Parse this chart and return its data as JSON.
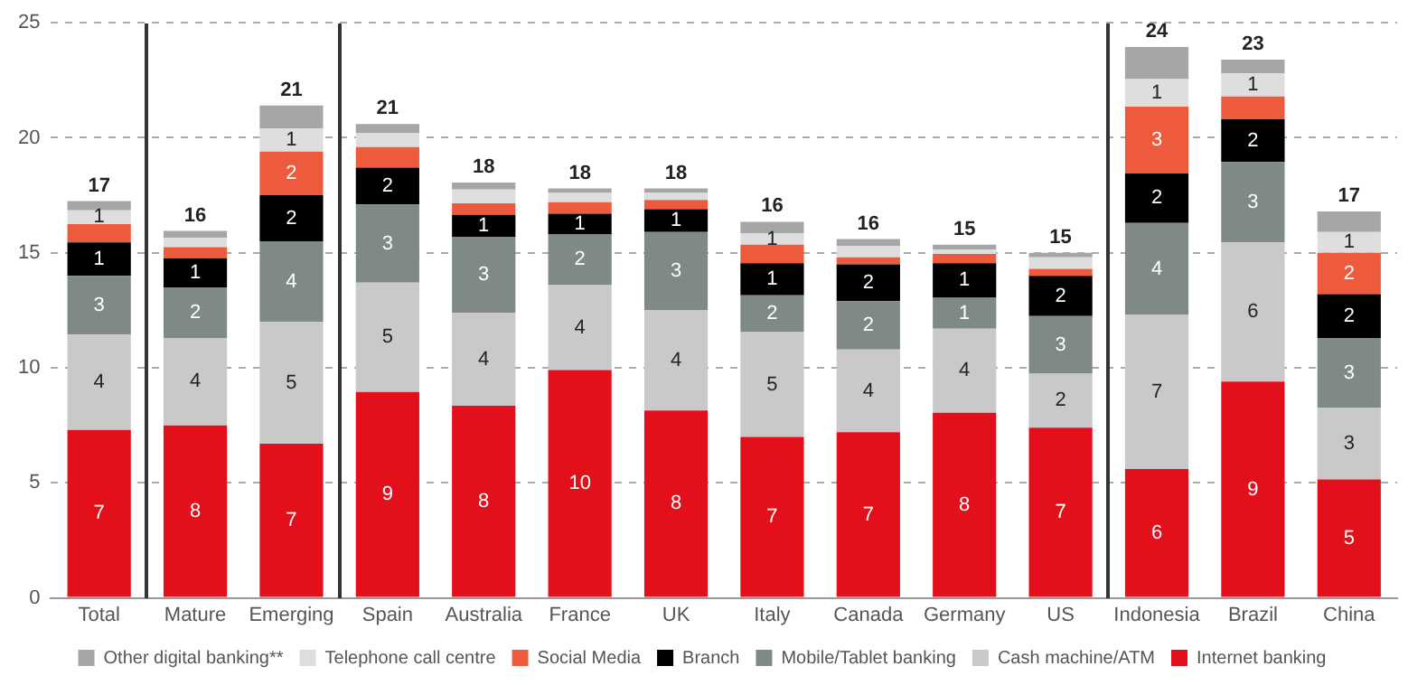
{
  "chart_data": {
    "type": "bar",
    "stacked": true,
    "categories": [
      "Total",
      "Mature",
      "Emerging",
      "Spain",
      "Australia",
      "France",
      "UK",
      "Italy",
      "Canada",
      "Germany",
      "US",
      "Indonesia",
      "Brazil",
      "China"
    ],
    "ylim": [
      0,
      25
    ],
    "yticks": [
      0,
      5,
      10,
      15,
      20,
      25
    ],
    "grid": "y",
    "legend": "bottom",
    "totals": [
      "17",
      "16",
      "21",
      "21",
      "18",
      "18",
      "18",
      "16",
      "16",
      "15",
      "15",
      "24",
      "23",
      "17"
    ],
    "series": [
      {
        "name": "Internet banking",
        "color": "#e3101b",
        "values": [
          7.3,
          7.5,
          6.7,
          8.95,
          8.35,
          9.9,
          8.15,
          7.0,
          7.2,
          8.05,
          7.4,
          5.6,
          9.4,
          5.15
        ],
        "value_labels": [
          "7",
          "8",
          "7",
          "9",
          "8",
          "10",
          "8",
          "7",
          "7",
          "8",
          "7",
          "6",
          "9",
          "5"
        ]
      },
      {
        "name": "Cash machine/ATM",
        "color": "#c9c9c9",
        "values": [
          4.15,
          3.8,
          5.3,
          4.75,
          4.05,
          3.7,
          4.35,
          4.55,
          3.6,
          3.65,
          2.35,
          6.7,
          6.05,
          3.1
        ],
        "value_labels": [
          "4",
          "4",
          "5",
          "5",
          "4",
          "4",
          "4",
          "5",
          "4",
          "4",
          "2",
          "7",
          "6",
          "3"
        ]
      },
      {
        "name": "Mobile/Tablet banking",
        "color": "#7f8a84",
        "values": [
          2.55,
          2.2,
          3.5,
          3.4,
          3.3,
          2.2,
          3.4,
          1.6,
          2.1,
          1.35,
          2.5,
          4.0,
          3.5,
          3.05
        ],
        "value_labels": [
          "3",
          "2",
          "4",
          "3",
          "3",
          "2",
          "3",
          "2",
          "2",
          "1",
          "3",
          "4",
          "3",
          "3"
        ]
      },
      {
        "name": "Branch",
        "color": "#000000",
        "values": [
          1.45,
          1.25,
          2.0,
          1.6,
          0.95,
          0.9,
          1.0,
          1.4,
          1.6,
          1.5,
          1.75,
          2.15,
          1.85,
          1.9
        ],
        "value_labels": [
          "1",
          "1",
          "2",
          "2",
          "1",
          "1",
          "1",
          "1",
          "2",
          "1",
          "2",
          "2",
          "2",
          "2"
        ]
      },
      {
        "name": "Social Media",
        "color": "#ee5a3c",
        "values": [
          0.8,
          0.5,
          1.9,
          0.9,
          0.5,
          0.5,
          0.4,
          0.8,
          0.3,
          0.4,
          0.3,
          2.9,
          1.0,
          1.8
        ],
        "value_labels": [
          null,
          null,
          "2",
          null,
          null,
          null,
          null,
          null,
          null,
          null,
          null,
          "3",
          null,
          "2"
        ]
      },
      {
        "name": "Telephone call centre",
        "color": "#dedede",
        "values": [
          0.6,
          0.4,
          1.0,
          0.6,
          0.6,
          0.4,
          0.3,
          0.5,
          0.5,
          0.2,
          0.5,
          1.2,
          1.0,
          0.9
        ],
        "value_labels": [
          "1",
          null,
          "1",
          null,
          null,
          null,
          null,
          "1",
          null,
          null,
          null,
          "1",
          "1",
          "1"
        ]
      },
      {
        "name": "Other digital banking**",
        "color": "#a5a7a6",
        "values": [
          0.4,
          0.3,
          1.0,
          0.4,
          0.3,
          0.2,
          0.2,
          0.5,
          0.3,
          0.2,
          0.2,
          1.4,
          0.6,
          0.9
        ]
      }
    ]
  }
}
